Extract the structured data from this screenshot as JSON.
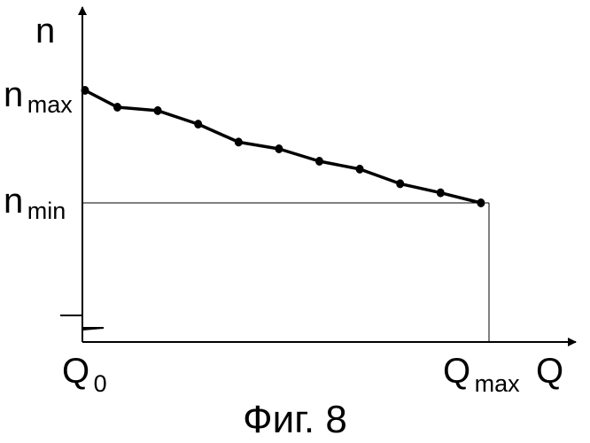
{
  "chart_data": {
    "type": "line",
    "title": "",
    "caption": "Фиг. 8",
    "x_axis": {
      "label": "Q",
      "start_label": {
        "base": "Q",
        "sub": "0"
      },
      "end_label": {
        "base": "Q",
        "sub": "max"
      }
    },
    "y_axis": {
      "label": "n",
      "max_label": {
        "base": "n",
        "sub": "max"
      },
      "min_label": {
        "base": "n",
        "sub": "min"
      },
      "axis_break": true
    },
    "xlim": [
      0,
      10
    ],
    "ylim": [
      0,
      1
    ],
    "grid": false,
    "legend": "none",
    "reference_lines": [
      "n_min horizontal",
      "Q_max vertical"
    ],
    "series": [
      {
        "x": [
          0,
          0.8,
          1.8,
          2.8,
          3.8,
          4.8,
          5.8,
          6.8,
          7.8,
          8.8,
          9.8
        ],
        "y": [
          1.0,
          0.85,
          0.82,
          0.7,
          0.54,
          0.48,
          0.37,
          0.3,
          0.17,
          0.09,
          0.0
        ]
      }
    ],
    "colors": {
      "line": "#000000",
      "markers": "#000000",
      "axes": "#000000",
      "background": "#ffffff"
    }
  }
}
